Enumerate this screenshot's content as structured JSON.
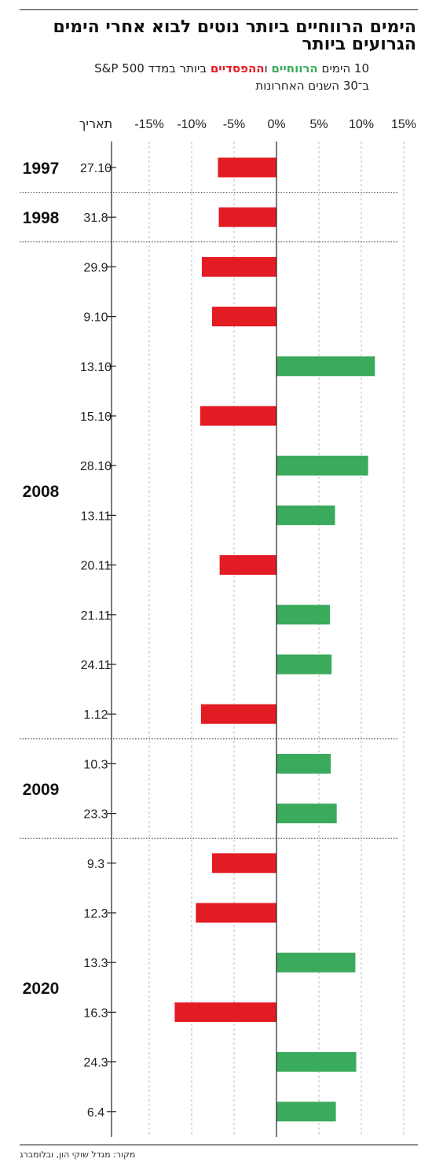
{
  "title": "הימים הרווחיים ביותר נוטים לבוא אחרי הימים הגרועים ביותר",
  "subtitle": {
    "w1": "10 הימים",
    "gain_word": "הרווחיים",
    "w2": "ו",
    "loss_word": "ההפסדיים",
    "w3": "ביותר במדד S&P 500",
    "line2": "ב־30 השנים האחרונות"
  },
  "source": "מקור: מגדל שוקי הון, ובלומברג",
  "colors": {
    "gain": "#3aaa5c",
    "loss": "#e31b23",
    "axis": "#222222",
    "grid": "#bbbbbb"
  },
  "chart_data": {
    "type": "bar",
    "orientation": "horizontal",
    "date_header": "תאריך",
    "x_ticks": [
      "-15%",
      "-10%",
      "-5%",
      "0%",
      "5%",
      "10%",
      "15%"
    ],
    "xlim": [
      -15,
      15
    ],
    "groups": [
      {
        "year": "1997",
        "rows": [
          {
            "date": "27.10",
            "value": -6.9
          }
        ]
      },
      {
        "year": "1998",
        "rows": [
          {
            "date": "31.8",
            "value": -6.8
          }
        ]
      },
      {
        "year": "2008",
        "rows": [
          {
            "date": "29.9",
            "value": -8.8
          },
          {
            "date": "9.10",
            "value": -7.6
          },
          {
            "date": "13.10",
            "value": 11.6
          },
          {
            "date": "15.10",
            "value": -9.0
          },
          {
            "date": "28.10",
            "value": 10.8
          },
          {
            "date": "13.11",
            "value": 6.9
          },
          {
            "date": "20.11",
            "value": -6.7
          },
          {
            "date": "21.11",
            "value": 6.3
          },
          {
            "date": "24.11",
            "value": 6.5
          },
          {
            "date": "1.12",
            "value": -8.9
          }
        ]
      },
      {
        "year": "2009",
        "rows": [
          {
            "date": "10.3",
            "value": 6.4
          },
          {
            "date": "23.3",
            "value": 7.1
          }
        ]
      },
      {
        "year": "2020",
        "rows": [
          {
            "date": "9.3",
            "value": -7.6
          },
          {
            "date": "12.3",
            "value": -9.5
          },
          {
            "date": "13.3",
            "value": 9.3
          },
          {
            "date": "16.3",
            "value": -12.0
          },
          {
            "date": "24.3",
            "value": 9.4
          },
          {
            "date": "6.4",
            "value": 7.0
          }
        ]
      }
    ]
  }
}
